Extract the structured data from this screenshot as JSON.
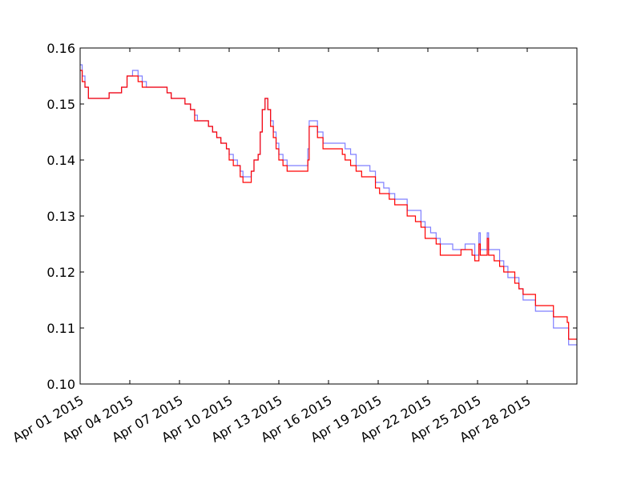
{
  "chart_data": {
    "type": "line",
    "title": "",
    "xlabel": "",
    "ylabel": "",
    "grid": false,
    "legend": "none",
    "x_range": [
      "2015-04-01",
      "2015-05-01"
    ],
    "ylim": [
      0.1,
      0.16
    ],
    "x_ticks": [
      {
        "date": "2015-04-01",
        "label": "Apr 01 2015"
      },
      {
        "date": "2015-04-04",
        "label": "Apr 04 2015"
      },
      {
        "date": "2015-04-07",
        "label": "Apr 07 2015"
      },
      {
        "date": "2015-04-10",
        "label": "Apr 10 2015"
      },
      {
        "date": "2015-04-13",
        "label": "Apr 13 2015"
      },
      {
        "date": "2015-04-16",
        "label": "Apr 16 2015"
      },
      {
        "date": "2015-04-19",
        "label": "Apr 19 2015"
      },
      {
        "date": "2015-04-22",
        "label": "Apr 22 2015"
      },
      {
        "date": "2015-04-25",
        "label": "Apr 25 2015"
      },
      {
        "date": "2015-04-28",
        "label": "Apr 28 2015"
      }
    ],
    "y_ticks": [
      {
        "value": 0.1,
        "label": "0.10"
      },
      {
        "value": 0.11,
        "label": "0.11"
      },
      {
        "value": 0.12,
        "label": "0.12"
      },
      {
        "value": 0.13,
        "label": "0.13"
      },
      {
        "value": 0.14,
        "label": "0.14"
      },
      {
        "value": 0.15,
        "label": "0.15"
      },
      {
        "value": 0.16,
        "label": "0.16"
      }
    ],
    "series": [
      {
        "color": "#7f7fff",
        "points": [
          [
            "2015-04-01T00:00",
            0.157
          ],
          [
            "2015-04-01T03:00",
            0.155
          ],
          [
            "2015-04-01T07:00",
            0.153
          ],
          [
            "2015-04-01T12:00",
            0.151
          ],
          [
            "2015-04-02T12:00",
            0.151
          ],
          [
            "2015-04-02T18:00",
            0.152
          ],
          [
            "2015-04-03T12:00",
            0.153
          ],
          [
            "2015-04-03T20:00",
            0.155
          ],
          [
            "2015-04-04T04:00",
            0.156
          ],
          [
            "2015-04-04T12:00",
            0.155
          ],
          [
            "2015-04-04T18:00",
            0.154
          ],
          [
            "2015-04-05T00:00",
            0.153
          ],
          [
            "2015-04-06T00:00",
            0.153
          ],
          [
            "2015-04-06T06:00",
            0.152
          ],
          [
            "2015-04-06T12:00",
            0.151
          ],
          [
            "2015-04-07T00:00",
            0.151
          ],
          [
            "2015-04-07T08:00",
            0.15
          ],
          [
            "2015-04-07T16:00",
            0.149
          ],
          [
            "2015-04-07T22:00",
            0.148
          ],
          [
            "2015-04-08T02:00",
            0.147
          ],
          [
            "2015-04-08T10:00",
            0.147
          ],
          [
            "2015-04-08T18:00",
            0.146
          ],
          [
            "2015-04-09T00:00",
            0.145
          ],
          [
            "2015-04-09T06:00",
            0.144
          ],
          [
            "2015-04-09T12:00",
            0.143
          ],
          [
            "2015-04-09T20:00",
            0.142
          ],
          [
            "2015-04-10T00:00",
            0.141
          ],
          [
            "2015-04-10T06:00",
            0.14
          ],
          [
            "2015-04-10T12:00",
            0.139
          ],
          [
            "2015-04-10T16:00",
            0.138
          ],
          [
            "2015-04-10T20:00",
            0.137
          ],
          [
            "2015-04-11T04:00",
            0.137
          ],
          [
            "2015-04-11T08:00",
            0.138
          ],
          [
            "2015-04-11T12:00",
            0.14
          ],
          [
            "2015-04-11T18:00",
            0.141
          ],
          [
            "2015-04-11T21:00",
            0.145
          ],
          [
            "2015-04-12T00:00",
            0.149
          ],
          [
            "2015-04-12T04:00",
            0.151
          ],
          [
            "2015-04-12T08:00",
            0.149
          ],
          [
            "2015-04-12T12:00",
            0.147
          ],
          [
            "2015-04-12T16:00",
            0.145
          ],
          [
            "2015-04-12T20:00",
            0.143
          ],
          [
            "2015-04-13T00:00",
            0.141
          ],
          [
            "2015-04-13T06:00",
            0.14
          ],
          [
            "2015-04-13T12:00",
            0.139
          ],
          [
            "2015-04-14T12:00",
            0.139
          ],
          [
            "2015-04-14T18:00",
            0.142
          ],
          [
            "2015-04-14T20:00",
            0.147
          ],
          [
            "2015-04-15T04:00",
            0.147
          ],
          [
            "2015-04-15T08:00",
            0.145
          ],
          [
            "2015-04-15T16:00",
            0.143
          ],
          [
            "2015-04-16T12:00",
            0.143
          ],
          [
            "2015-04-16T20:00",
            0.143
          ],
          [
            "2015-04-17T00:00",
            0.142
          ],
          [
            "2015-04-17T08:00",
            0.141
          ],
          [
            "2015-04-17T16:00",
            0.139
          ],
          [
            "2015-04-18T00:00",
            0.139
          ],
          [
            "2015-04-18T12:00",
            0.138
          ],
          [
            "2015-04-18T20:00",
            0.136
          ],
          [
            "2015-04-19T02:00",
            0.136
          ],
          [
            "2015-04-19T08:00",
            0.135
          ],
          [
            "2015-04-19T16:00",
            0.134
          ],
          [
            "2015-04-20T00:00",
            0.133
          ],
          [
            "2015-04-20T12:00",
            0.133
          ],
          [
            "2015-04-20T18:00",
            0.131
          ],
          [
            "2015-04-21T06:00",
            0.131
          ],
          [
            "2015-04-21T14:00",
            0.129
          ],
          [
            "2015-04-21T20:00",
            0.128
          ],
          [
            "2015-04-22T04:00",
            0.127
          ],
          [
            "2015-04-22T12:00",
            0.126
          ],
          [
            "2015-04-22T18:00",
            0.125
          ],
          [
            "2015-04-23T06:00",
            0.125
          ],
          [
            "2015-04-23T12:00",
            0.124
          ],
          [
            "2015-04-24T00:00",
            0.124
          ],
          [
            "2015-04-24T06:00",
            0.125
          ],
          [
            "2015-04-24T16:00",
            0.125
          ],
          [
            "2015-04-24T20:00",
            0.123
          ],
          [
            "2015-04-25T00:00",
            0.123
          ],
          [
            "2015-04-25T02:00",
            0.127
          ],
          [
            "2015-04-25T04:00",
            0.124
          ],
          [
            "2015-04-25T12:00",
            0.124
          ],
          [
            "2015-04-25T14:00",
            0.127
          ],
          [
            "2015-04-25T16:00",
            0.124
          ],
          [
            "2015-04-26T00:00",
            0.124
          ],
          [
            "2015-04-26T08:00",
            0.122
          ],
          [
            "2015-04-26T14:00",
            0.121
          ],
          [
            "2015-04-26T20:00",
            0.119
          ],
          [
            "2015-04-27T06:00",
            0.119
          ],
          [
            "2015-04-27T12:00",
            0.117
          ],
          [
            "2015-04-27T18:00",
            0.115
          ],
          [
            "2015-04-28T00:00",
            0.115
          ],
          [
            "2015-04-28T12:00",
            0.113
          ],
          [
            "2015-04-29T12:00",
            0.113
          ],
          [
            "2015-04-29T14:00",
            0.11
          ],
          [
            "2015-04-30T10:00",
            0.11
          ],
          [
            "2015-04-30T12:00",
            0.107
          ],
          [
            "2015-05-01T00:00",
            0.107
          ]
        ]
      },
      {
        "color": "#ff0000",
        "points": [
          [
            "2015-04-01T00:00",
            0.156
          ],
          [
            "2015-04-01T03:00",
            0.154
          ],
          [
            "2015-04-01T07:00",
            0.153
          ],
          [
            "2015-04-01T12:00",
            0.151
          ],
          [
            "2015-04-02T12:00",
            0.151
          ],
          [
            "2015-04-02T18:00",
            0.152
          ],
          [
            "2015-04-03T12:00",
            0.153
          ],
          [
            "2015-04-03T20:00",
            0.155
          ],
          [
            "2015-04-04T04:00",
            0.155
          ],
          [
            "2015-04-04T12:00",
            0.154
          ],
          [
            "2015-04-04T18:00",
            0.153
          ],
          [
            "2015-04-05T00:00",
            0.153
          ],
          [
            "2015-04-06T00:00",
            0.153
          ],
          [
            "2015-04-06T06:00",
            0.152
          ],
          [
            "2015-04-06T12:00",
            0.151
          ],
          [
            "2015-04-07T00:00",
            0.151
          ],
          [
            "2015-04-07T08:00",
            0.15
          ],
          [
            "2015-04-07T16:00",
            0.149
          ],
          [
            "2015-04-07T22:00",
            0.147
          ],
          [
            "2015-04-08T02:00",
            0.147
          ],
          [
            "2015-04-08T10:00",
            0.147
          ],
          [
            "2015-04-08T18:00",
            0.146
          ],
          [
            "2015-04-09T00:00",
            0.145
          ],
          [
            "2015-04-09T06:00",
            0.144
          ],
          [
            "2015-04-09T12:00",
            0.143
          ],
          [
            "2015-04-09T20:00",
            0.142
          ],
          [
            "2015-04-10T00:00",
            0.14
          ],
          [
            "2015-04-10T06:00",
            0.139
          ],
          [
            "2015-04-10T12:00",
            0.139
          ],
          [
            "2015-04-10T16:00",
            0.137
          ],
          [
            "2015-04-10T20:00",
            0.136
          ],
          [
            "2015-04-11T04:00",
            0.136
          ],
          [
            "2015-04-11T08:00",
            0.138
          ],
          [
            "2015-04-11T12:00",
            0.14
          ],
          [
            "2015-04-11T18:00",
            0.141
          ],
          [
            "2015-04-11T21:00",
            0.145
          ],
          [
            "2015-04-12T00:00",
            0.149
          ],
          [
            "2015-04-12T04:00",
            0.151
          ],
          [
            "2015-04-12T08:00",
            0.149
          ],
          [
            "2015-04-12T12:00",
            0.146
          ],
          [
            "2015-04-12T16:00",
            0.144
          ],
          [
            "2015-04-12T20:00",
            0.142
          ],
          [
            "2015-04-13T00:00",
            0.14
          ],
          [
            "2015-04-13T06:00",
            0.139
          ],
          [
            "2015-04-13T12:00",
            0.138
          ],
          [
            "2015-04-14T12:00",
            0.138
          ],
          [
            "2015-04-14T18:00",
            0.14
          ],
          [
            "2015-04-14T20:00",
            0.146
          ],
          [
            "2015-04-15T04:00",
            0.146
          ],
          [
            "2015-04-15T08:00",
            0.144
          ],
          [
            "2015-04-15T16:00",
            0.142
          ],
          [
            "2015-04-16T12:00",
            0.142
          ],
          [
            "2015-04-16T20:00",
            0.141
          ],
          [
            "2015-04-17T00:00",
            0.14
          ],
          [
            "2015-04-17T08:00",
            0.139
          ],
          [
            "2015-04-17T16:00",
            0.138
          ],
          [
            "2015-04-18T00:00",
            0.137
          ],
          [
            "2015-04-18T12:00",
            0.137
          ],
          [
            "2015-04-18T20:00",
            0.135
          ],
          [
            "2015-04-19T02:00",
            0.134
          ],
          [
            "2015-04-19T08:00",
            0.134
          ],
          [
            "2015-04-19T16:00",
            0.133
          ],
          [
            "2015-04-20T00:00",
            0.132
          ],
          [
            "2015-04-20T12:00",
            0.132
          ],
          [
            "2015-04-20T18:00",
            0.13
          ],
          [
            "2015-04-21T06:00",
            0.129
          ],
          [
            "2015-04-21T14:00",
            0.128
          ],
          [
            "2015-04-21T20:00",
            0.126
          ],
          [
            "2015-04-22T04:00",
            0.126
          ],
          [
            "2015-04-22T12:00",
            0.125
          ],
          [
            "2015-04-22T18:00",
            0.123
          ],
          [
            "2015-04-23T06:00",
            0.123
          ],
          [
            "2015-04-23T12:00",
            0.123
          ],
          [
            "2015-04-24T00:00",
            0.124
          ],
          [
            "2015-04-24T06:00",
            0.124
          ],
          [
            "2015-04-24T16:00",
            0.123
          ],
          [
            "2015-04-24T20:00",
            0.122
          ],
          [
            "2015-04-25T00:00",
            0.122
          ],
          [
            "2015-04-25T02:00",
            0.125
          ],
          [
            "2015-04-25T04:00",
            0.123
          ],
          [
            "2015-04-25T12:00",
            0.123
          ],
          [
            "2015-04-25T14:00",
            0.126
          ],
          [
            "2015-04-25T16:00",
            0.123
          ],
          [
            "2015-04-26T00:00",
            0.122
          ],
          [
            "2015-04-26T08:00",
            0.121
          ],
          [
            "2015-04-26T14:00",
            0.12
          ],
          [
            "2015-04-26T20:00",
            0.12
          ],
          [
            "2015-04-27T06:00",
            0.118
          ],
          [
            "2015-04-27T12:00",
            0.117
          ],
          [
            "2015-04-27T18:00",
            0.116
          ],
          [
            "2015-04-28T00:00",
            0.116
          ],
          [
            "2015-04-28T12:00",
            0.114
          ],
          [
            "2015-04-29T12:00",
            0.114
          ],
          [
            "2015-04-29T14:00",
            0.112
          ],
          [
            "2015-04-30T10:00",
            0.111
          ],
          [
            "2015-04-30T12:00",
            0.108
          ],
          [
            "2015-05-01T00:00",
            0.108
          ]
        ]
      }
    ]
  }
}
